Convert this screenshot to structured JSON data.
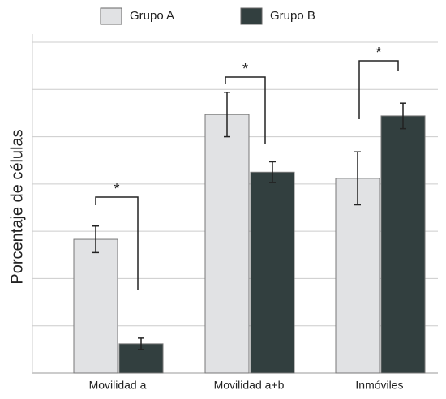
{
  "chart_data": {
    "type": "bar",
    "ylabel": "Porcentaje de células",
    "categories": [
      "Movilidad a",
      "Movilidad a+b",
      "Inmóviles"
    ],
    "series": [
      {
        "name": "Grupo A",
        "color": "#e1e2e4",
        "values": [
          2.83,
          5.47,
          4.12
        ],
        "errors": [
          0.28,
          0.47,
          0.56
        ]
      },
      {
        "name": "Grupo B",
        "color": "#323f3f",
        "values": [
          0.62,
          4.25,
          5.44
        ],
        "errors": [
          0.12,
          0.22,
          0.27
        ]
      }
    ],
    "annotations": [
      "*",
      "*",
      "*"
    ],
    "ylim": [
      0,
      7
    ],
    "yticks": [
      0,
      1,
      2,
      3,
      4,
      5,
      6,
      7
    ],
    "grid": true
  }
}
